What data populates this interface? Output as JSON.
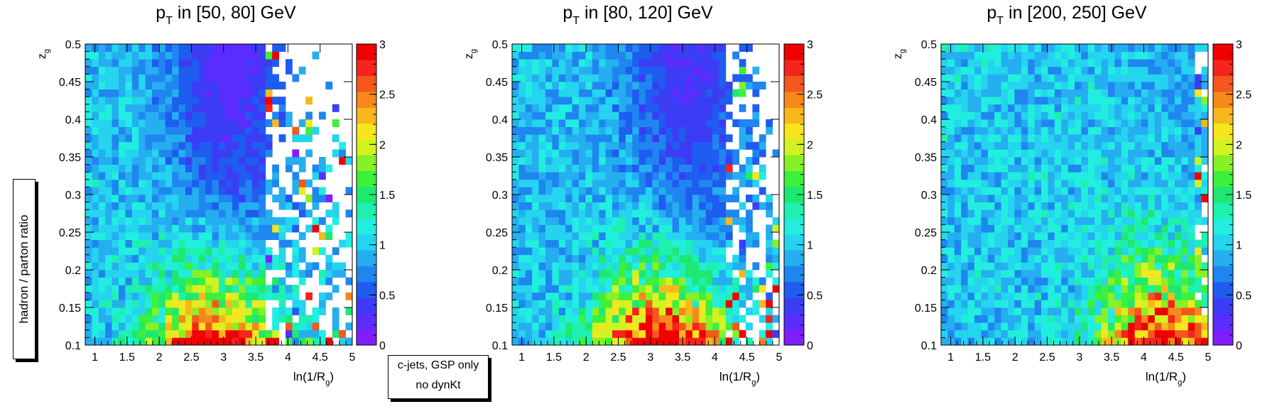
{
  "figure": {
    "ylabel": "hadron / parton ratio",
    "note": [
      "c-jets, GSP only",
      "no dynKt"
    ]
  },
  "colors": {
    "palette": [
      "#7f1fff",
      "#5b2cff",
      "#3c3cf5",
      "#1f5cf0",
      "#1f86ef",
      "#25aef0",
      "#25d4ef",
      "#22eee0",
      "#1ef0b0",
      "#1ee870",
      "#3df03c",
      "#88f026",
      "#d2f222",
      "#f5e61e",
      "#f8b81c",
      "#f6881c",
      "#f4581c",
      "#f5241e"
    ],
    "over": "#f00000"
  },
  "chart_data": [
    {
      "type": "heatmap",
      "title": "p_T in [50, 80] GeV",
      "title_parts": [
        "p",
        "T",
        " in [50, 80] GeV"
      ],
      "xlabel_parts": [
        "ln(1/R",
        "g",
        ")"
      ],
      "ylabel_parts": [
        "z",
        "g"
      ],
      "xlim": [
        0.85,
        5.0
      ],
      "ylim": [
        0.1,
        0.5
      ],
      "zlim": [
        0,
        3
      ],
      "xticks": [
        "1",
        "1.5",
        "2",
        "2.5",
        "3",
        "3.5",
        "4",
        "4.5",
        "5"
      ],
      "yticks": [
        "0.1",
        "0.15",
        "0.2",
        "0.25",
        "0.3",
        "0.35",
        "0.4",
        "0.45",
        "0.5"
      ],
      "zticks": [
        "0",
        "0.5",
        "1",
        "1.5",
        "2",
        "2.5",
        "3"
      ],
      "nx": 40,
      "ny": 40,
      "z_formula": "estimated: low ln(1/Rg) ~1.0; high zg at mid ln(1/Rg) ~0.3 (blue/purple); low zg at large ln(1/Rg) >3 (red); sparse/empty beyond ln(1/Rg)~4",
      "model": {
        "base": 1.05,
        "hi_center": 3.1,
        "hi_width": 1.0,
        "hi_depth": 0.85,
        "low_gain": 2.6,
        "low_center": 2.9,
        "low_width": 0.9,
        "empty_start": 3.7,
        "empty_frac": 0.55,
        "seed": 11
      }
    },
    {
      "type": "heatmap",
      "title": "p_T in [80, 120] GeV",
      "title_parts": [
        "p",
        "T",
        " in [80, 120] GeV"
      ],
      "xlabel_parts": [
        "ln(1/R",
        "g",
        ")"
      ],
      "ylabel_parts": [
        "z",
        "g"
      ],
      "xlim": [
        0.85,
        5.0
      ],
      "ylim": [
        0.1,
        0.5
      ],
      "zlim": [
        0,
        3
      ],
      "xticks": [
        "1",
        "1.5",
        "2",
        "2.5",
        "3",
        "3.5",
        "4",
        "4.5",
        "5"
      ],
      "yticks": [
        "0.1",
        "0.15",
        "0.2",
        "0.25",
        "0.3",
        "0.35",
        "0.4",
        "0.45",
        "0.5"
      ],
      "zticks": [
        "0",
        "0.5",
        "1",
        "1.5",
        "2",
        "2.5",
        "3"
      ],
      "nx": 40,
      "ny": 40,
      "z_formula": "estimated: ~1.0 at low ln(1/Rg); blue/purple band at high zg near ln(1/Rg) 3-4; red at low zg for ln(1/Rg) 2.2-4; sparse beyond ~4.3",
      "model": {
        "base": 1.0,
        "hi_center": 3.6,
        "hi_width": 1.0,
        "hi_depth": 0.7,
        "low_gain": 2.8,
        "low_center": 3.2,
        "low_width": 1.0,
        "empty_start": 4.2,
        "empty_frac": 0.5,
        "seed": 23
      }
    },
    {
      "type": "heatmap",
      "title": "p_T in [200, 250] GeV",
      "title_parts": [
        "p",
        "T",
        " in [200, 250] GeV"
      ],
      "xlabel_parts": [
        "ln(1/R",
        "g",
        ")"
      ],
      "ylabel_parts": [
        "z",
        "g"
      ],
      "xlim": [
        0.85,
        5.0
      ],
      "ylim": [
        0.1,
        0.5
      ],
      "zlim": [
        0,
        3
      ],
      "xticks": [
        "1",
        "1.5",
        "2",
        "2.5",
        "3",
        "3.5",
        "4",
        "4.5",
        "5"
      ],
      "yticks": [
        "0.1",
        "0.15",
        "0.2",
        "0.25",
        "0.3",
        "0.35",
        "0.4",
        "0.45",
        "0.5"
      ],
      "zticks": [
        "0",
        "0.5",
        "1",
        "1.5",
        "2",
        "2.5",
        "3"
      ],
      "nx": 40,
      "ny": 40,
      "z_formula": "estimated: ~1.0 across most of the plane (cyan); red/orange at low zg for ln(1/Rg) > 3.5; few sparse cells at far right",
      "model": {
        "base": 1.05,
        "hi_center": 4.5,
        "hi_width": 0.6,
        "hi_depth": 0.15,
        "low_gain": 2.5,
        "low_center": 4.3,
        "low_width": 0.9,
        "empty_start": 4.8,
        "empty_frac": 0.25,
        "seed": 37
      }
    }
  ]
}
